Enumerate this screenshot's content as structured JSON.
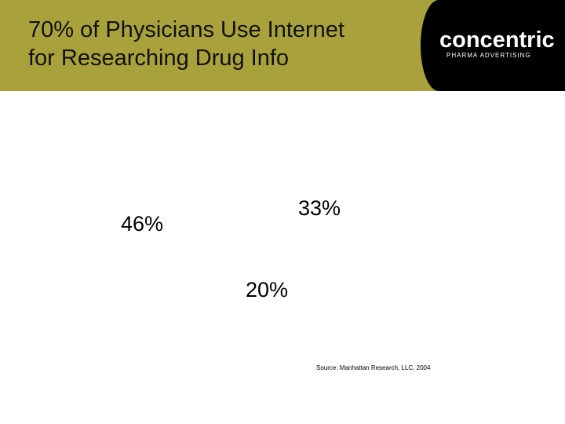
{
  "header": {
    "title_line1": "70% of Physicians Use Internet",
    "title_line2": "for Researching Drug Info",
    "logo_main": "concentric",
    "logo_sub": "PHARMA ADVERTISING",
    "background_color": "#a9a23c",
    "logo_panel_color": "#000000"
  },
  "chart_data": {
    "type": "pie",
    "values": [
      46,
      33,
      20
    ],
    "labels": [
      "46%",
      "33%",
      "20%"
    ]
  },
  "source": "Source: Manhattan Research, LLC, 2004"
}
